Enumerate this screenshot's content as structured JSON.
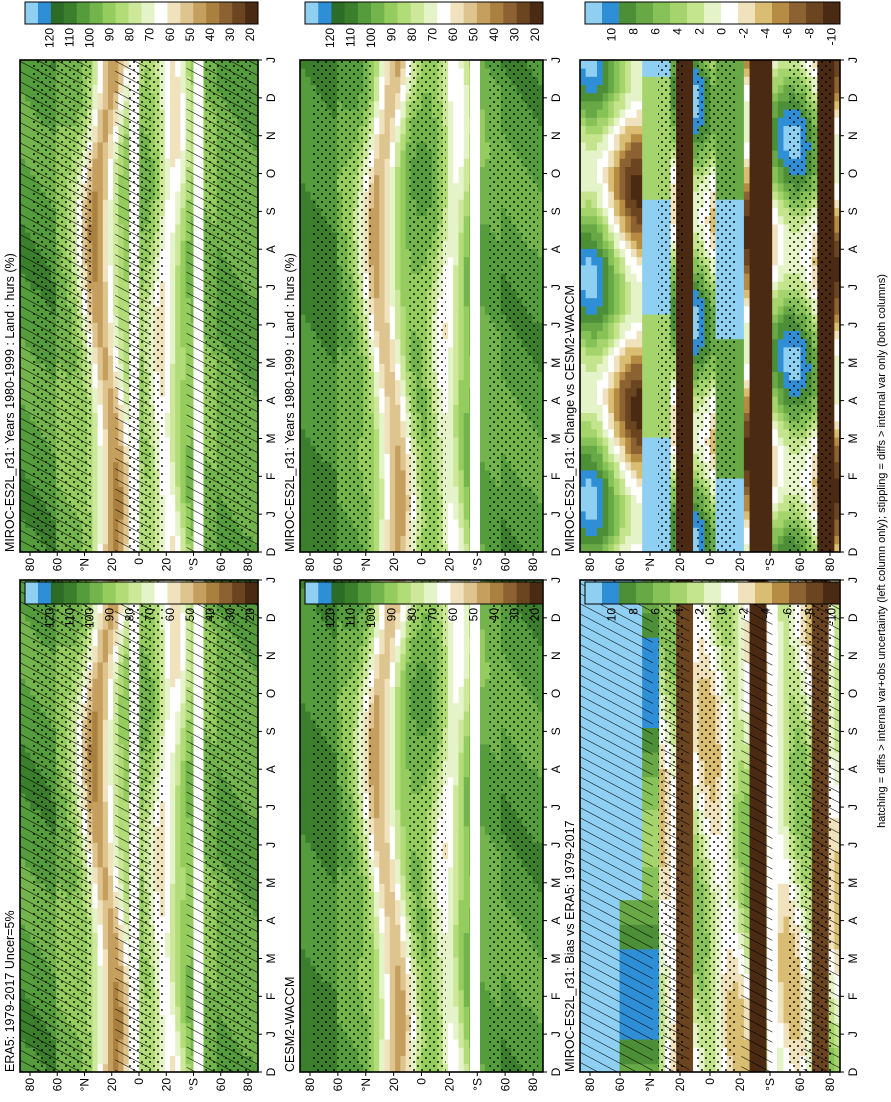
{
  "figure": {
    "footnote": "hatching = diffs > internal var+obs uncertainty (left column only); stippling = diffs > internal var only (both columns)"
  },
  "chart_data": [
    {
      "id": "p1",
      "type": "heatmap",
      "title": "MIROC-ES2L_r31: Years 1980-1999 : Land : hurs (%)",
      "months": [
        "D",
        "J",
        "F",
        "M",
        "A",
        "M",
        "J",
        "J",
        "A",
        "S",
        "O",
        "N",
        "D",
        "J"
      ],
      "lat_ticks": [
        "80",
        "60",
        "°N",
        "20",
        "0",
        "20",
        "°S",
        "60",
        "80"
      ],
      "colorbar": [
        "120",
        "110",
        "100",
        "90",
        "80",
        "70",
        "60",
        "50",
        "40",
        "30",
        "20"
      ],
      "scale": "abs",
      "hatch": true,
      "stipple": true,
      "gaps": [
        0.48,
        0.75
      ],
      "gap_color": "#ffffff"
    },
    {
      "id": "p2",
      "type": "heatmap",
      "title": "MIROC-ES2L_r31: Years 1980-1999 : Land : hurs (%)",
      "months": [
        "D",
        "J",
        "F",
        "M",
        "A",
        "M",
        "J",
        "J",
        "A",
        "S",
        "O",
        "N",
        "D",
        "J"
      ],
      "lat_ticks": [
        "80",
        "60",
        "°N",
        "20",
        "0",
        "20",
        "°S",
        "60",
        "80"
      ],
      "colorbar": [
        "120",
        "110",
        "100",
        "90",
        "80",
        "70",
        "60",
        "50",
        "40",
        "30",
        "20"
      ],
      "scale": "abs",
      "hatch": false,
      "stipple": true,
      "gaps": [
        0.72
      ],
      "gap_color": "#ffffff"
    },
    {
      "id": "p3",
      "type": "heatmap",
      "title": "ERA5: 1979-2017 Uncer=5%",
      "months": [
        "D",
        "J",
        "F",
        "M",
        "A",
        "M",
        "J",
        "J",
        "A",
        "S",
        "O",
        "N",
        "D",
        "J"
      ],
      "lat_ticks": [
        "80",
        "60",
        "°N",
        "20",
        "0",
        "20",
        "°S",
        "60",
        "80"
      ],
      "colorbar": [
        "120",
        "110",
        "100",
        "90",
        "80",
        "70",
        "60",
        "50",
        "40",
        "30",
        "20"
      ],
      "scale": "abs",
      "hatch": true,
      "stipple": true,
      "gaps": [
        0.48,
        0.75
      ],
      "gap_color": "#ffffff"
    },
    {
      "id": "p4",
      "type": "heatmap",
      "title": "CESM2-WACCM",
      "months": [
        "D",
        "J",
        "F",
        "M",
        "A",
        "M",
        "J",
        "J",
        "A",
        "S",
        "O",
        "N",
        "D",
        "J"
      ],
      "lat_ticks": [
        "80",
        "60",
        "°N",
        "20",
        "0",
        "20",
        "°S",
        "60",
        "80"
      ],
      "colorbar": [
        "120",
        "110",
        "100",
        "90",
        "80",
        "70",
        "60",
        "50",
        "40",
        "30",
        "20"
      ],
      "scale": "abs",
      "hatch": false,
      "stipple": true,
      "gaps": [
        0.72
      ],
      "gap_color": "#ffffff"
    },
    {
      "id": "p5",
      "type": "heatmap",
      "title": "MIROC-ES2L_r31: Bias vs ERA5: 1979-2017",
      "months": [
        "D",
        "J",
        "F",
        "M",
        "A",
        "M",
        "J",
        "J",
        "A",
        "S",
        "O",
        "N",
        "D",
        "J"
      ],
      "lat_ticks": [
        "80",
        "60",
        "°N",
        "20",
        "0",
        "20",
        "°S",
        "60",
        "80"
      ],
      "colorbar": [
        "10",
        "8",
        "6",
        "4",
        "2",
        "0",
        "-2",
        "-4",
        "-6",
        "-8",
        "-10"
      ],
      "scale": "diff",
      "hatch": true,
      "stipple": true,
      "gaps": [
        0.74
      ],
      "gap_color": "#ffffff"
    },
    {
      "id": "p6",
      "type": "heatmap",
      "title": "MIROC-ES2L_r31: Change vs CESM2-WACCM",
      "months": [
        "D",
        "J",
        "F",
        "M",
        "A",
        "M",
        "J",
        "J",
        "A",
        "S",
        "O",
        "N",
        "D",
        "J"
      ],
      "lat_ticks": [
        "80",
        "60",
        "°N",
        "20",
        "0",
        "20",
        "°S",
        "60",
        "80"
      ],
      "colorbar": [
        "10",
        "8",
        "6",
        "4",
        "2",
        "0",
        "-2",
        "-4",
        "-6",
        "-8",
        "-10"
      ],
      "scale": "diff",
      "hatch": false,
      "stipple": true,
      "gaps": [],
      "gap_color": "#ffffff"
    }
  ]
}
